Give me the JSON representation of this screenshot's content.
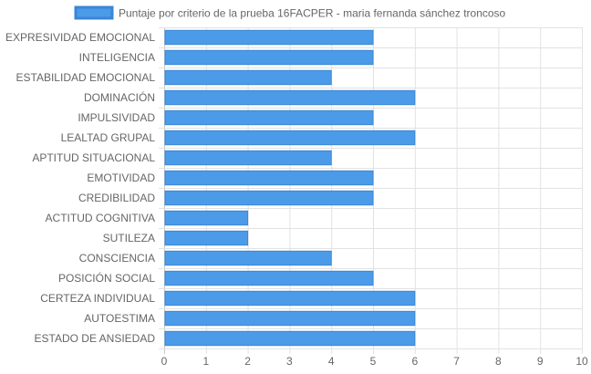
{
  "chart_data": {
    "type": "bar",
    "orientation": "horizontal",
    "categories": [
      "EXPRESIVIDAD EMOCIONAL",
      "INTELIGENCIA",
      "ESTABILIDAD EMOCIONAL",
      "DOMINACIÓN",
      "IMPULSIVIDAD",
      "LEALTAD GRUPAL",
      "APTITUD SITUACIONAL",
      "EMOTIVIDAD",
      "CREDIBILIDAD",
      "ACTITUD COGNITIVA",
      "SUTILEZA",
      "CONSCIENCIA",
      "POSICIÓN SOCIAL",
      "CERTEZA INDIVIDUAL",
      "AUTOESTIMA",
      "ESTADO DE ANSIEDAD"
    ],
    "series": [
      {
        "name": "Puntaje por criterio de la prueba 16FACPER - maria fernanda sánchez troncoso",
        "values": [
          5,
          5,
          4,
          6,
          5,
          6,
          4,
          5,
          5,
          2,
          2,
          4,
          5,
          6,
          6,
          6
        ],
        "color": "#4c9be8",
        "border_color": "#3a86d6"
      }
    ],
    "xlim": [
      0,
      10
    ],
    "xticks": [
      "0",
      "1",
      "2",
      "3",
      "4",
      "5",
      "6",
      "7",
      "8",
      "9",
      "10"
    ],
    "grid": true,
    "legend_position": "top"
  }
}
